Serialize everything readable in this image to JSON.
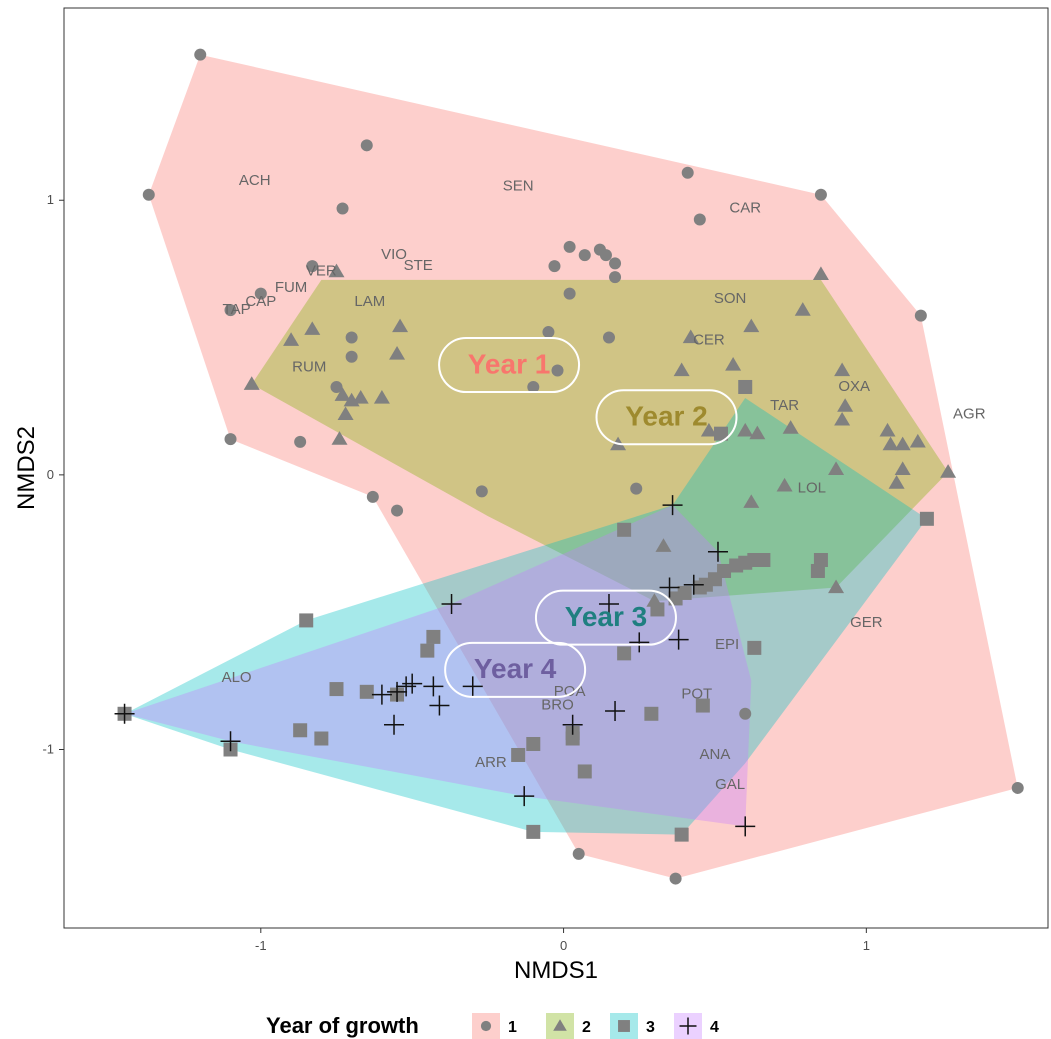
{
  "chart_data": {
    "type": "scatter",
    "xlabel": "NMDS1",
    "ylabel": "NMDS2",
    "xlim": [
      -1.65,
      1.6
    ],
    "ylim": [
      -1.65,
      1.7
    ],
    "x_ticks": [
      -1,
      0,
      1
    ],
    "y_ticks": [
      -1,
      0,
      1
    ],
    "grid": false,
    "legend": {
      "title": "Year of growth",
      "placement": "bottom",
      "entries": [
        "1",
        "2",
        "3",
        "4"
      ]
    },
    "colors": {
      "1": "#F8766D",
      "2": "#7CAE00",
      "3": "#00BFC4",
      "4": "#C77CFF",
      "points": "#808080"
    },
    "series": [
      {
        "name": "1",
        "marker": "circle",
        "points": [
          [
            -1.2,
            1.53
          ],
          [
            -1.37,
            1.02
          ],
          [
            -0.65,
            1.2
          ],
          [
            -0.73,
            0.97
          ],
          [
            -0.83,
            0.76
          ],
          [
            -1.0,
            0.66
          ],
          [
            -1.1,
            0.6
          ],
          [
            -0.7,
            0.5
          ],
          [
            -0.7,
            0.43
          ],
          [
            -0.75,
            0.32
          ],
          [
            -1.1,
            0.13
          ],
          [
            -0.87,
            0.12
          ],
          [
            -0.63,
            -0.08
          ],
          [
            -0.55,
            -0.13
          ],
          [
            -0.27,
            -0.06
          ],
          [
            -0.1,
            0.32
          ],
          [
            -0.05,
            0.52
          ],
          [
            -0.03,
            0.76
          ],
          [
            0.02,
            0.83
          ],
          [
            0.07,
            0.8
          ],
          [
            0.12,
            0.82
          ],
          [
            0.14,
            0.8
          ],
          [
            0.17,
            0.77
          ],
          [
            0.02,
            0.66
          ],
          [
            0.17,
            0.72
          ],
          [
            -0.02,
            0.38
          ],
          [
            0.15,
            0.5
          ],
          [
            0.41,
            1.1
          ],
          [
            0.45,
            0.93
          ],
          [
            0.85,
            1.02
          ],
          [
            1.18,
            0.58
          ],
          [
            1.5,
            -1.14
          ],
          [
            0.37,
            -1.47
          ],
          [
            0.05,
            -1.38
          ],
          [
            0.24,
            -0.05
          ],
          [
            0.6,
            -0.87
          ]
        ]
      },
      {
        "name": "2",
        "marker": "triangle",
        "points": [
          [
            -1.03,
            0.33
          ],
          [
            -0.9,
            0.49
          ],
          [
            -0.83,
            0.53
          ],
          [
            -0.75,
            0.74
          ],
          [
            -0.73,
            0.29
          ],
          [
            -0.7,
            0.27
          ],
          [
            -0.72,
            0.22
          ],
          [
            -0.67,
            0.28
          ],
          [
            -0.74,
            0.13
          ],
          [
            -0.6,
            0.28
          ],
          [
            -0.55,
            0.44
          ],
          [
            -0.54,
            0.54
          ],
          [
            0.42,
            0.5
          ],
          [
            0.39,
            0.38
          ],
          [
            0.56,
            0.4
          ],
          [
            0.62,
            0.54
          ],
          [
            0.79,
            0.6
          ],
          [
            0.85,
            0.73
          ],
          [
            0.92,
            0.38
          ],
          [
            0.93,
            0.25
          ],
          [
            0.92,
            0.2
          ],
          [
            1.07,
            0.16
          ],
          [
            1.08,
            0.11
          ],
          [
            1.12,
            0.11
          ],
          [
            1.17,
            0.12
          ],
          [
            1.12,
            0.02
          ],
          [
            1.27,
            0.01
          ],
          [
            1.1,
            -0.03
          ],
          [
            0.9,
            0.02
          ],
          [
            0.73,
            -0.04
          ],
          [
            0.75,
            0.17
          ],
          [
            0.64,
            0.15
          ],
          [
            0.6,
            0.16
          ],
          [
            0.48,
            0.16
          ],
          [
            0.18,
            0.11
          ],
          [
            0.62,
            -0.1
          ],
          [
            0.33,
            -0.26
          ],
          [
            0.9,
            -0.41
          ],
          [
            0.3,
            -0.46
          ]
        ]
      },
      {
        "name": "3",
        "marker": "square",
        "points": [
          [
            -1.45,
            -0.87
          ],
          [
            -1.1,
            -1.0
          ],
          [
            -0.87,
            -0.93
          ],
          [
            -0.8,
            -0.96
          ],
          [
            -0.75,
            -0.78
          ],
          [
            -0.65,
            -0.79
          ],
          [
            -0.55,
            -0.8
          ],
          [
            -0.45,
            -0.64
          ],
          [
            -0.43,
            -0.59
          ],
          [
            -0.85,
            -0.53
          ],
          [
            -0.15,
            -1.02
          ],
          [
            -0.1,
            -0.98
          ],
          [
            0.03,
            -0.94
          ],
          [
            0.03,
            -0.96
          ],
          [
            0.07,
            -1.08
          ],
          [
            0.2,
            -0.65
          ],
          [
            0.29,
            -0.87
          ],
          [
            0.37,
            -0.45
          ],
          [
            0.4,
            -0.43
          ],
          [
            0.45,
            -0.41
          ],
          [
            0.47,
            -0.4
          ],
          [
            0.5,
            -0.38
          ],
          [
            0.53,
            -0.35
          ],
          [
            0.57,
            -0.33
          ],
          [
            0.6,
            -0.32
          ],
          [
            0.63,
            -0.31
          ],
          [
            0.66,
            -0.31
          ],
          [
            0.85,
            -0.31
          ],
          [
            0.84,
            -0.35
          ],
          [
            0.63,
            -0.63
          ],
          [
            0.46,
            -0.84
          ],
          [
            0.2,
            -0.2
          ],
          [
            0.52,
            0.15
          ],
          [
            0.6,
            0.32
          ],
          [
            1.2,
            -0.16
          ],
          [
            0.31,
            -0.49
          ],
          [
            -0.1,
            -1.3
          ],
          [
            0.39,
            -1.31
          ]
        ]
      },
      {
        "name": "4",
        "marker": "cross",
        "points": [
          [
            -1.45,
            -0.87
          ],
          [
            -1.1,
            -0.97
          ],
          [
            -0.6,
            -0.8
          ],
          [
            -0.55,
            -0.79
          ],
          [
            -0.52,
            -0.77
          ],
          [
            -0.5,
            -0.76
          ],
          [
            -0.56,
            -0.91
          ],
          [
            -0.43,
            -0.77
          ],
          [
            -0.41,
            -0.84
          ],
          [
            -0.37,
            -0.47
          ],
          [
            -0.3,
            -0.77
          ],
          [
            -0.13,
            -1.17
          ],
          [
            0.03,
            -0.91
          ],
          [
            0.17,
            -0.86
          ],
          [
            0.15,
            -0.47
          ],
          [
            0.25,
            -0.61
          ],
          [
            0.38,
            -0.6
          ],
          [
            0.35,
            -0.41
          ],
          [
            0.43,
            -0.4
          ],
          [
            0.51,
            -0.28
          ],
          [
            0.36,
            -0.11
          ],
          [
            0.6,
            -1.28
          ]
        ]
      }
    ],
    "hulls": [
      {
        "group": "1",
        "vertices": [
          [
            -1.2,
            1.53
          ],
          [
            0.85,
            1.02
          ],
          [
            1.18,
            0.58
          ],
          [
            1.5,
            -1.14
          ],
          [
            0.37,
            -1.47
          ],
          [
            0.05,
            -1.38
          ],
          [
            -0.63,
            -0.08
          ],
          [
            -1.1,
            0.13
          ],
          [
            -1.37,
            1.02
          ]
        ]
      },
      {
        "group": "2",
        "vertices": [
          [
            -1.03,
            0.33
          ],
          [
            -0.8,
            0.71
          ],
          [
            0.85,
            0.71
          ],
          [
            1.27,
            0.01
          ],
          [
            0.9,
            -0.41
          ],
          [
            0.3,
            -0.46
          ],
          [
            -0.25,
            -0.15
          ]
        ]
      },
      {
        "group": "3",
        "vertices": [
          [
            -1.45,
            -0.87
          ],
          [
            -0.85,
            -0.53
          ],
          [
            0.36,
            -0.11
          ],
          [
            0.6,
            0.28
          ],
          [
            1.2,
            -0.16
          ],
          [
            0.6,
            -1.05
          ],
          [
            0.39,
            -1.31
          ],
          [
            -0.1,
            -1.3
          ],
          [
            -1.1,
            -1.0
          ]
        ]
      },
      {
        "group": "4",
        "vertices": [
          [
            -1.45,
            -0.87
          ],
          [
            -0.37,
            -0.47
          ],
          [
            0.36,
            -0.11
          ],
          [
            0.51,
            -0.28
          ],
          [
            0.62,
            -0.75
          ],
          [
            0.6,
            -1.28
          ],
          [
            -0.13,
            -1.17
          ],
          [
            -1.1,
            -0.97
          ]
        ]
      }
    ],
    "species_labels": [
      {
        "text": "ACH",
        "x": -1.02,
        "y": 1.07
      },
      {
        "text": "SEN",
        "x": -0.15,
        "y": 1.05
      },
      {
        "text": "CAR",
        "x": 0.6,
        "y": 0.97
      },
      {
        "text": "VIO",
        "x": -0.56,
        "y": 0.8
      },
      {
        "text": "STE",
        "x": -0.48,
        "y": 0.76
      },
      {
        "text": "VER",
        "x": -0.8,
        "y": 0.74
      },
      {
        "text": "FUM",
        "x": -0.9,
        "y": 0.68
      },
      {
        "text": "CAP",
        "x": -1.0,
        "y": 0.63
      },
      {
        "text": "TAP",
        "x": -1.08,
        "y": 0.6
      },
      {
        "text": "LAM",
        "x": -0.64,
        "y": 0.63
      },
      {
        "text": "SON",
        "x": 0.55,
        "y": 0.64
      },
      {
        "text": "CER",
        "x": 0.48,
        "y": 0.49
      },
      {
        "text": "RUM",
        "x": -0.84,
        "y": 0.39
      },
      {
        "text": "OXA",
        "x": 0.96,
        "y": 0.32
      },
      {
        "text": "TAR",
        "x": 0.73,
        "y": 0.25
      },
      {
        "text": "AGR",
        "x": 1.34,
        "y": 0.22
      },
      {
        "text": "LOL",
        "x": 0.82,
        "y": -0.05
      },
      {
        "text": "GER",
        "x": 1.0,
        "y": -0.54
      },
      {
        "text": "EPI",
        "x": 0.54,
        "y": -0.62
      },
      {
        "text": "ALO",
        "x": -1.08,
        "y": -0.74
      },
      {
        "text": "POA",
        "x": 0.02,
        "y": -0.79
      },
      {
        "text": "POT",
        "x": 0.44,
        "y": -0.8
      },
      {
        "text": "BRO",
        "x": -0.02,
        "y": -0.84
      },
      {
        "text": "ARR",
        "x": -0.24,
        "y": -1.05
      },
      {
        "text": "ANA",
        "x": 0.5,
        "y": -1.02
      },
      {
        "text": "GAL",
        "x": 0.55,
        "y": -1.13
      }
    ],
    "annotations": [
      {
        "text": "Year 1",
        "x": -0.18,
        "y": 0.4,
        "color": "#F8766D",
        "group": "1"
      },
      {
        "text": "Year 2",
        "x": 0.34,
        "y": 0.21,
        "color": "#9E8A2E",
        "group": "2"
      },
      {
        "text": "Year 3",
        "x": 0.14,
        "y": -0.52,
        "color": "#1F7F80",
        "group": "3"
      },
      {
        "text": "Year 4",
        "x": -0.16,
        "y": -0.71,
        "color": "#6E5FA0",
        "group": "4"
      }
    ]
  }
}
